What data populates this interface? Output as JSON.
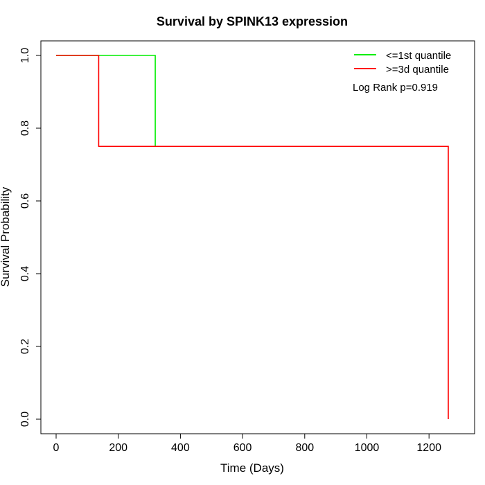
{
  "chart_data": {
    "type": "line",
    "title": "Survival by SPINK13 expression",
    "xlabel": "Time (Days)",
    "ylabel": "Survival Probability",
    "xlim": [
      0,
      1260
    ],
    "ylim": [
      0,
      1
    ],
    "x_ticks": [
      0,
      200,
      400,
      600,
      800,
      1000,
      1200
    ],
    "y_ticks": [
      0.0,
      0.2,
      0.4,
      0.6,
      0.8,
      1.0
    ],
    "x_tick_labels": [
      "0",
      "200",
      "400",
      "600",
      "800",
      "1000",
      "1200"
    ],
    "y_tick_labels": [
      "0.0",
      "0.2",
      "0.4",
      "0.6",
      "0.8",
      "1.0"
    ],
    "grid": false,
    "legend_position": "top-right",
    "series": [
      {
        "name": "<=1st quantile",
        "color": "#00ee00",
        "step": true,
        "x": [
          0,
          319,
          319
        ],
        "y": [
          1.0,
          1.0,
          0.75
        ]
      },
      {
        "name": ">=3d quantile",
        "color": "#ff0000",
        "step": true,
        "x": [
          0,
          137,
          137,
          1262,
          1262
        ],
        "y": [
          1.0,
          1.0,
          0.75,
          0.75,
          0.0
        ]
      }
    ],
    "annotations": [
      {
        "text": "Log Rank p=0.919",
        "position": "top-right"
      }
    ]
  }
}
